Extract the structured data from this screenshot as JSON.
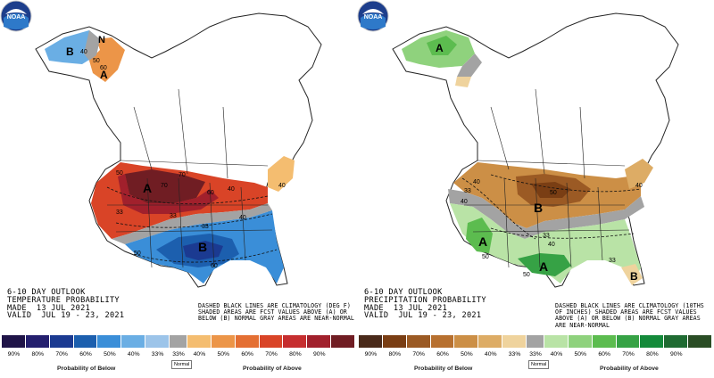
{
  "temperature": {
    "caption_lines": [
      "6-10 DAY OUTLOOK",
      "TEMPERATURE PROBABILITY",
      "MADE  13 JUL 2021",
      "VALID  JUL 19 - 23, 2021"
    ],
    "note": "DASHED BLACK LINES ARE CLIMATOLOGY (DEG F) SHADED AREAS ARE FCST VALUES ABOVE (A) OR BELOW (B) NORMAL GRAY AREAS ARE NEAR-NORMAL",
    "map_letters": [
      "A",
      "B",
      "B",
      "A",
      "N"
    ],
    "contour_labels": [
      "40",
      "50",
      "60",
      "70",
      "33",
      "40",
      "50",
      "60",
      "70",
      "33",
      "40",
      "50",
      "60",
      "40",
      "33"
    ],
    "legend": {
      "below_label": "Probability of Below",
      "above_label": "Probability of Above",
      "normal_label": "Normal",
      "below_ticks": [
        "90%",
        "80%",
        "70%",
        "60%",
        "50%",
        "40%",
        "33%"
      ],
      "normal_tick": "33%",
      "above_ticks": [
        "40%",
        "50%",
        "60%",
        "70%",
        "80%",
        "90%"
      ],
      "below_colors": [
        "#1f1448",
        "#241f6e",
        "#1b3a91",
        "#1c5fae",
        "#3a8ed8",
        "#6aaee4",
        "#9cc4e9"
      ],
      "normal_color": "#a3a3a3",
      "above_colors": [
        "#f4bd70",
        "#ec9548",
        "#e46f33",
        "#d94427",
        "#c62e2f",
        "#a1202c",
        "#701d23"
      ]
    }
  },
  "precipitation": {
    "caption_lines": [
      "6-10 DAY OUTLOOK",
      "PRECIPITATION PROBABILITY",
      "MADE  13 JUL 2021",
      "VALID  JUL 19 - 23, 2021"
    ],
    "note": "DASHED BLACK LINES ARE CLIMATOLOGY (10THS OF INCHES) SHADED AREAS ARE FCST VALUES ABOVE (A) OR BELOW (B) NORMAL GRAY AREAS ARE NEAR-NORMAL",
    "map_letters": [
      "A",
      "B",
      "A",
      "A",
      "B"
    ],
    "contour_labels": [
      "40",
      "33",
      "40",
      "50",
      "33",
      "40",
      "50",
      "33",
      "40",
      "50"
    ],
    "legend": {
      "below_label": "Probability of Below",
      "above_label": "Probability of Above",
      "normal_label": "Normal",
      "below_ticks": [
        "90%",
        "80%",
        "70%",
        "60%",
        "50%",
        "40%",
        "33%"
      ],
      "normal_tick": "33%",
      "above_ticks": [
        "40%",
        "50%",
        "60%",
        "70%",
        "80%",
        "90%"
      ],
      "below_colors": [
        "#4a2a1a",
        "#7a3e14",
        "#9b5a24",
        "#b7702f",
        "#cc8f46",
        "#ddac65",
        "#efd39d"
      ],
      "normal_color": "#a3a3a3",
      "above_colors": [
        "#b9e3a6",
        "#8fd27d",
        "#5cbc4f",
        "#36a245",
        "#148a3a",
        "#1f6b32",
        "#2a4d25"
      ]
    }
  },
  "logo_text": "NOAA"
}
